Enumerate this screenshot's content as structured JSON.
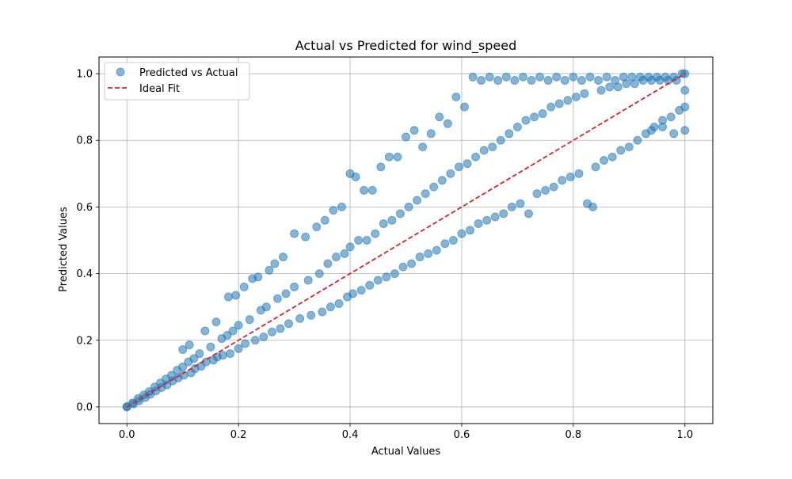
{
  "chart_data": {
    "type": "scatter",
    "title": "Actual vs Predicted for wind_speed",
    "xlabel": "Actual Values",
    "ylabel": "Predicted Values",
    "xlim": [
      -0.05,
      1.05
    ],
    "ylim": [
      -0.05,
      1.05
    ],
    "xticks": [
      0.0,
      0.2,
      0.4,
      0.6,
      0.8,
      1.0
    ],
    "yticks": [
      0.0,
      0.2,
      0.4,
      0.6,
      0.8,
      1.0
    ],
    "xtick_labels": [
      "0.0",
      "0.2",
      "0.4",
      "0.6",
      "0.8",
      "1.0"
    ],
    "ytick_labels": [
      "0.0",
      "0.2",
      "0.4",
      "0.6",
      "0.8",
      "1.0"
    ],
    "grid": true,
    "legend": {
      "placement": "top-left",
      "entries": [
        "Predicted vs Actual",
        "Ideal Fit"
      ]
    },
    "series": [
      {
        "name": "Predicted vs Actual",
        "kind": "scatter",
        "color": "#1f77b4",
        "alpha": 0.55,
        "points": [
          [
            0.0,
            0.0
          ],
          [
            0.0,
            0.001
          ],
          [
            0.01,
            0.012
          ],
          [
            0.012,
            0.009
          ],
          [
            0.02,
            0.025
          ],
          [
            0.022,
            0.018
          ],
          [
            0.03,
            0.036
          ],
          [
            0.033,
            0.028
          ],
          [
            0.04,
            0.046
          ],
          [
            0.042,
            0.038
          ],
          [
            0.05,
            0.06
          ],
          [
            0.052,
            0.048
          ],
          [
            0.06,
            0.072
          ],
          [
            0.062,
            0.058
          ],
          [
            0.07,
            0.084
          ],
          [
            0.072,
            0.066
          ],
          [
            0.08,
            0.095
          ],
          [
            0.082,
            0.078
          ],
          [
            0.09,
            0.11
          ],
          [
            0.092,
            0.087
          ],
          [
            0.1,
            0.12
          ],
          [
            0.1,
            0.172
          ],
          [
            0.102,
            0.095
          ],
          [
            0.11,
            0.135
          ],
          [
            0.112,
            0.186
          ],
          [
            0.115,
            0.102
          ],
          [
            0.12,
            0.145
          ],
          [
            0.122,
            0.115
          ],
          [
            0.13,
            0.16
          ],
          [
            0.133,
            0.122
          ],
          [
            0.14,
            0.228
          ],
          [
            0.142,
            0.135
          ],
          [
            0.15,
            0.18
          ],
          [
            0.155,
            0.14
          ],
          [
            0.16,
            0.255
          ],
          [
            0.162,
            0.15
          ],
          [
            0.17,
            0.205
          ],
          [
            0.172,
            0.155
          ],
          [
            0.18,
            0.215
          ],
          [
            0.182,
            0.33
          ],
          [
            0.185,
            0.16
          ],
          [
            0.19,
            0.228
          ],
          [
            0.195,
            0.335
          ],
          [
            0.2,
            0.245
          ],
          [
            0.2,
            0.175
          ],
          [
            0.21,
            0.36
          ],
          [
            0.212,
            0.19
          ],
          [
            0.22,
            0.262
          ],
          [
            0.225,
            0.385
          ],
          [
            0.23,
            0.2
          ],
          [
            0.235,
            0.39
          ],
          [
            0.24,
            0.29
          ],
          [
            0.245,
            0.21
          ],
          [
            0.25,
            0.3
          ],
          [
            0.255,
            0.41
          ],
          [
            0.26,
            0.225
          ],
          [
            0.265,
            0.43
          ],
          [
            0.27,
            0.325
          ],
          [
            0.275,
            0.235
          ],
          [
            0.28,
            0.45
          ],
          [
            0.285,
            0.34
          ],
          [
            0.29,
            0.25
          ],
          [
            0.3,
            0.52
          ],
          [
            0.3,
            0.36
          ],
          [
            0.31,
            0.265
          ],
          [
            0.32,
            0.51
          ],
          [
            0.325,
            0.38
          ],
          [
            0.33,
            0.275
          ],
          [
            0.34,
            0.54
          ],
          [
            0.345,
            0.4
          ],
          [
            0.35,
            0.285
          ],
          [
            0.355,
            0.56
          ],
          [
            0.36,
            0.43
          ],
          [
            0.365,
            0.3
          ],
          [
            0.37,
            0.59
          ],
          [
            0.375,
            0.45
          ],
          [
            0.38,
            0.31
          ],
          [
            0.385,
            0.6
          ],
          [
            0.39,
            0.46
          ],
          [
            0.395,
            0.33
          ],
          [
            0.4,
            0.7
          ],
          [
            0.4,
            0.48
          ],
          [
            0.405,
            0.34
          ],
          [
            0.41,
            0.69
          ],
          [
            0.415,
            0.5
          ],
          [
            0.42,
            0.35
          ],
          [
            0.425,
            0.65
          ],
          [
            0.43,
            0.5
          ],
          [
            0.435,
            0.365
          ],
          [
            0.44,
            0.65
          ],
          [
            0.445,
            0.52
          ],
          [
            0.45,
            0.38
          ],
          [
            0.455,
            0.72
          ],
          [
            0.46,
            0.55
          ],
          [
            0.465,
            0.39
          ],
          [
            0.47,
            0.75
          ],
          [
            0.475,
            0.56
          ],
          [
            0.48,
            0.4
          ],
          [
            0.485,
            0.75
          ],
          [
            0.49,
            0.58
          ],
          [
            0.495,
            0.42
          ],
          [
            0.5,
            0.81
          ],
          [
            0.505,
            0.6
          ],
          [
            0.51,
            0.43
          ],
          [
            0.515,
            0.83
          ],
          [
            0.52,
            0.62
          ],
          [
            0.525,
            0.45
          ],
          [
            0.53,
            0.78
          ],
          [
            0.535,
            0.64
          ],
          [
            0.54,
            0.46
          ],
          [
            0.545,
            0.82
          ],
          [
            0.55,
            0.66
          ],
          [
            0.555,
            0.47
          ],
          [
            0.56,
            0.87
          ],
          [
            0.565,
            0.68
          ],
          [
            0.57,
            0.49
          ],
          [
            0.575,
            0.85
          ],
          [
            0.58,
            0.7
          ],
          [
            0.585,
            0.5
          ],
          [
            0.59,
            0.93
          ],
          [
            0.595,
            0.72
          ],
          [
            0.6,
            0.52
          ],
          [
            0.605,
            0.9
          ],
          [
            0.61,
            0.73
          ],
          [
            0.615,
            0.53
          ],
          [
            0.62,
            0.99
          ],
          [
            0.625,
            0.75
          ],
          [
            0.63,
            0.55
          ],
          [
            0.635,
            0.98
          ],
          [
            0.64,
            0.77
          ],
          [
            0.645,
            0.56
          ],
          [
            0.65,
            0.99
          ],
          [
            0.655,
            0.78
          ],
          [
            0.66,
            0.57
          ],
          [
            0.665,
            0.98
          ],
          [
            0.67,
            0.8
          ],
          [
            0.675,
            0.58
          ],
          [
            0.68,
            0.99
          ],
          [
            0.685,
            0.82
          ],
          [
            0.69,
            0.6
          ],
          [
            0.695,
            0.98
          ],
          [
            0.7,
            0.84
          ],
          [
            0.705,
            0.61
          ],
          [
            0.71,
            0.99
          ],
          [
            0.715,
            0.86
          ],
          [
            0.72,
            0.58
          ],
          [
            0.725,
            0.98
          ],
          [
            0.73,
            0.87
          ],
          [
            0.735,
            0.64
          ],
          [
            0.74,
            0.99
          ],
          [
            0.745,
            0.88
          ],
          [
            0.75,
            0.65
          ],
          [
            0.755,
            0.98
          ],
          [
            0.76,
            0.9
          ],
          [
            0.765,
            0.66
          ],
          [
            0.77,
            0.99
          ],
          [
            0.775,
            0.91
          ],
          [
            0.78,
            0.68
          ],
          [
            0.785,
            0.98
          ],
          [
            0.79,
            0.92
          ],
          [
            0.795,
            0.69
          ],
          [
            0.8,
            0.99
          ],
          [
            0.805,
            0.93
          ],
          [
            0.81,
            0.7
          ],
          [
            0.815,
            0.98
          ],
          [
            0.82,
            0.94
          ],
          [
            0.825,
            0.61
          ],
          [
            0.83,
            0.99
          ],
          [
            0.835,
            0.6
          ],
          [
            0.84,
            0.72
          ],
          [
            0.845,
            0.98
          ],
          [
            0.85,
            0.95
          ],
          [
            0.855,
            0.74
          ],
          [
            0.86,
            0.99
          ],
          [
            0.865,
            0.96
          ],
          [
            0.87,
            0.75
          ],
          [
            0.875,
            0.98
          ],
          [
            0.88,
            0.96
          ],
          [
            0.885,
            0.77
          ],
          [
            0.89,
            0.99
          ],
          [
            0.895,
            0.97
          ],
          [
            0.9,
            0.78
          ],
          [
            0.905,
            0.99
          ],
          [
            0.91,
            0.97
          ],
          [
            0.915,
            0.8
          ],
          [
            0.92,
            0.99
          ],
          [
            0.925,
            0.98
          ],
          [
            0.93,
            0.82
          ],
          [
            0.935,
            0.99
          ],
          [
            0.94,
            0.98
          ],
          [
            0.945,
            0.84
          ],
          [
            0.95,
            0.99
          ],
          [
            0.955,
            0.98
          ],
          [
            0.96,
            0.86
          ],
          [
            0.965,
            0.99
          ],
          [
            0.97,
            0.98
          ],
          [
            0.975,
            0.87
          ],
          [
            0.98,
            0.99
          ],
          [
            0.985,
            0.98
          ],
          [
            0.99,
            0.89
          ],
          [
            0.995,
            1.0
          ],
          [
            1.0,
            1.0
          ],
          [
            1.0,
            0.83
          ],
          [
            1.0,
            0.9
          ],
          [
            1.0,
            0.95
          ],
          [
            0.98,
            0.82
          ],
          [
            0.96,
            0.84
          ],
          [
            0.94,
            0.83
          ]
        ]
      },
      {
        "name": "Ideal Fit",
        "kind": "line",
        "color": "#d62728",
        "dash": "dashed",
        "x": [
          0.0,
          1.0
        ],
        "y": [
          0.0,
          1.0
        ]
      }
    ]
  }
}
